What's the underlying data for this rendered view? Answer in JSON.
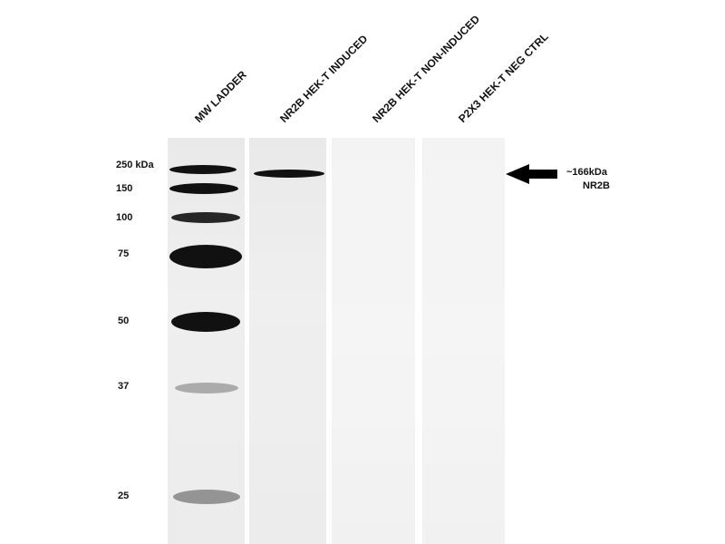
{
  "lanes": [
    {
      "label": "MW LADDER"
    },
    {
      "label": "NR2B HEK-T INDUCED"
    },
    {
      "label": "NR2B HEK-T NON-INDUCED"
    },
    {
      "label": "P2X3 HEK-T NEG CTRL"
    }
  ],
  "markers": [
    "250 kDa",
    "150",
    "100",
    "75",
    "50",
    "37",
    "25"
  ],
  "annotation": {
    "size": "~166kDa",
    "protein": "NR2B",
    "icon": "arrow-left-icon"
  }
}
